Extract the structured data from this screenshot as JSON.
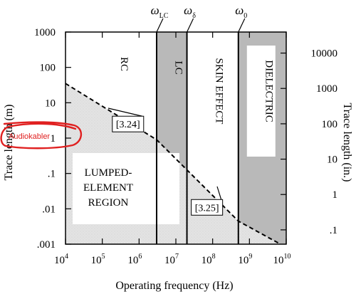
{
  "chart_data": {
    "type": "area",
    "x_scale": "log",
    "y_scale": "log",
    "xlim": [
      10000,
      10000000000
    ],
    "ylim": [
      0.001,
      1000
    ],
    "y2lim_in": [
      0.03937,
      39370
    ],
    "xlabel": "Operating frequency (Hz)",
    "ylabel": "Trace length (m)",
    "y2label": "Trace length (in.)",
    "x_tick_values": [
      10000,
      100000,
      1000000,
      10000000,
      100000000,
      1000000000,
      10000000000
    ],
    "x_tick_labels": [
      {
        "base": "10",
        "exp": "4"
      },
      {
        "base": "10",
        "exp": "5"
      },
      {
        "base": "10",
        "exp": "6"
      },
      {
        "base": "10",
        "exp": "7"
      },
      {
        "base": "10",
        "exp": "8"
      },
      {
        "base": "10",
        "exp": "9"
      },
      {
        "base": "10",
        "exp": "10"
      }
    ],
    "y_tick_values": [
      1000,
      100,
      10,
      1,
      0.1,
      0.01,
      0.001
    ],
    "y_tick_labels": [
      "1000",
      "100",
      "10",
      "1",
      ".1",
      ".01",
      ".001"
    ],
    "y2_tick_values": [
      10000,
      1000,
      100,
      10,
      1,
      0.1
    ],
    "y2_tick_labels": [
      "10000",
      "1000",
      "100",
      "10",
      "1",
      ".1"
    ],
    "boundary_line": {
      "style": "dashed",
      "points": [
        [
          10000,
          35
        ],
        [
          3000000,
          0.9
        ],
        [
          500000000,
          0.0045
        ],
        [
          7000000000,
          0.001
        ]
      ]
    },
    "lumped_region_label": [
      "LUMPED-",
      "ELEMENT",
      "REGION"
    ],
    "regions": [
      {
        "label": "RC",
        "x_from": 10000,
        "x_to": 3000000,
        "shaded": false,
        "vertical": false
      },
      {
        "label": "LC",
        "x_from": 3000000,
        "x_to": 20000000,
        "shaded": true,
        "vertical": true
      },
      {
        "label": "SKIN EFFECT",
        "x_from": 20000000,
        "x_to": 500000000,
        "shaded": false,
        "vertical": true
      },
      {
        "label": "DIELECTRIC",
        "x_from": 500000000,
        "x_to": 10000000000,
        "shaded": true,
        "vertical": true
      }
    ],
    "frequency_markers": [
      {
        "symbol": "ω",
        "sub": "LC",
        "x": 3000000
      },
      {
        "symbol": "ω",
        "sub": "δ",
        "x": 20000000
      },
      {
        "symbol": "ω",
        "sub": "0",
        "x": 500000000
      }
    ],
    "equation_refs": [
      {
        "label": "[3.24]",
        "x": 500000,
        "y": 2.5
      },
      {
        "label": "[3.25]",
        "x": 70000000,
        "y": 0.011
      }
    ],
    "annotation": {
      "text": "Audiokabler",
      "color": "#e02020"
    }
  }
}
